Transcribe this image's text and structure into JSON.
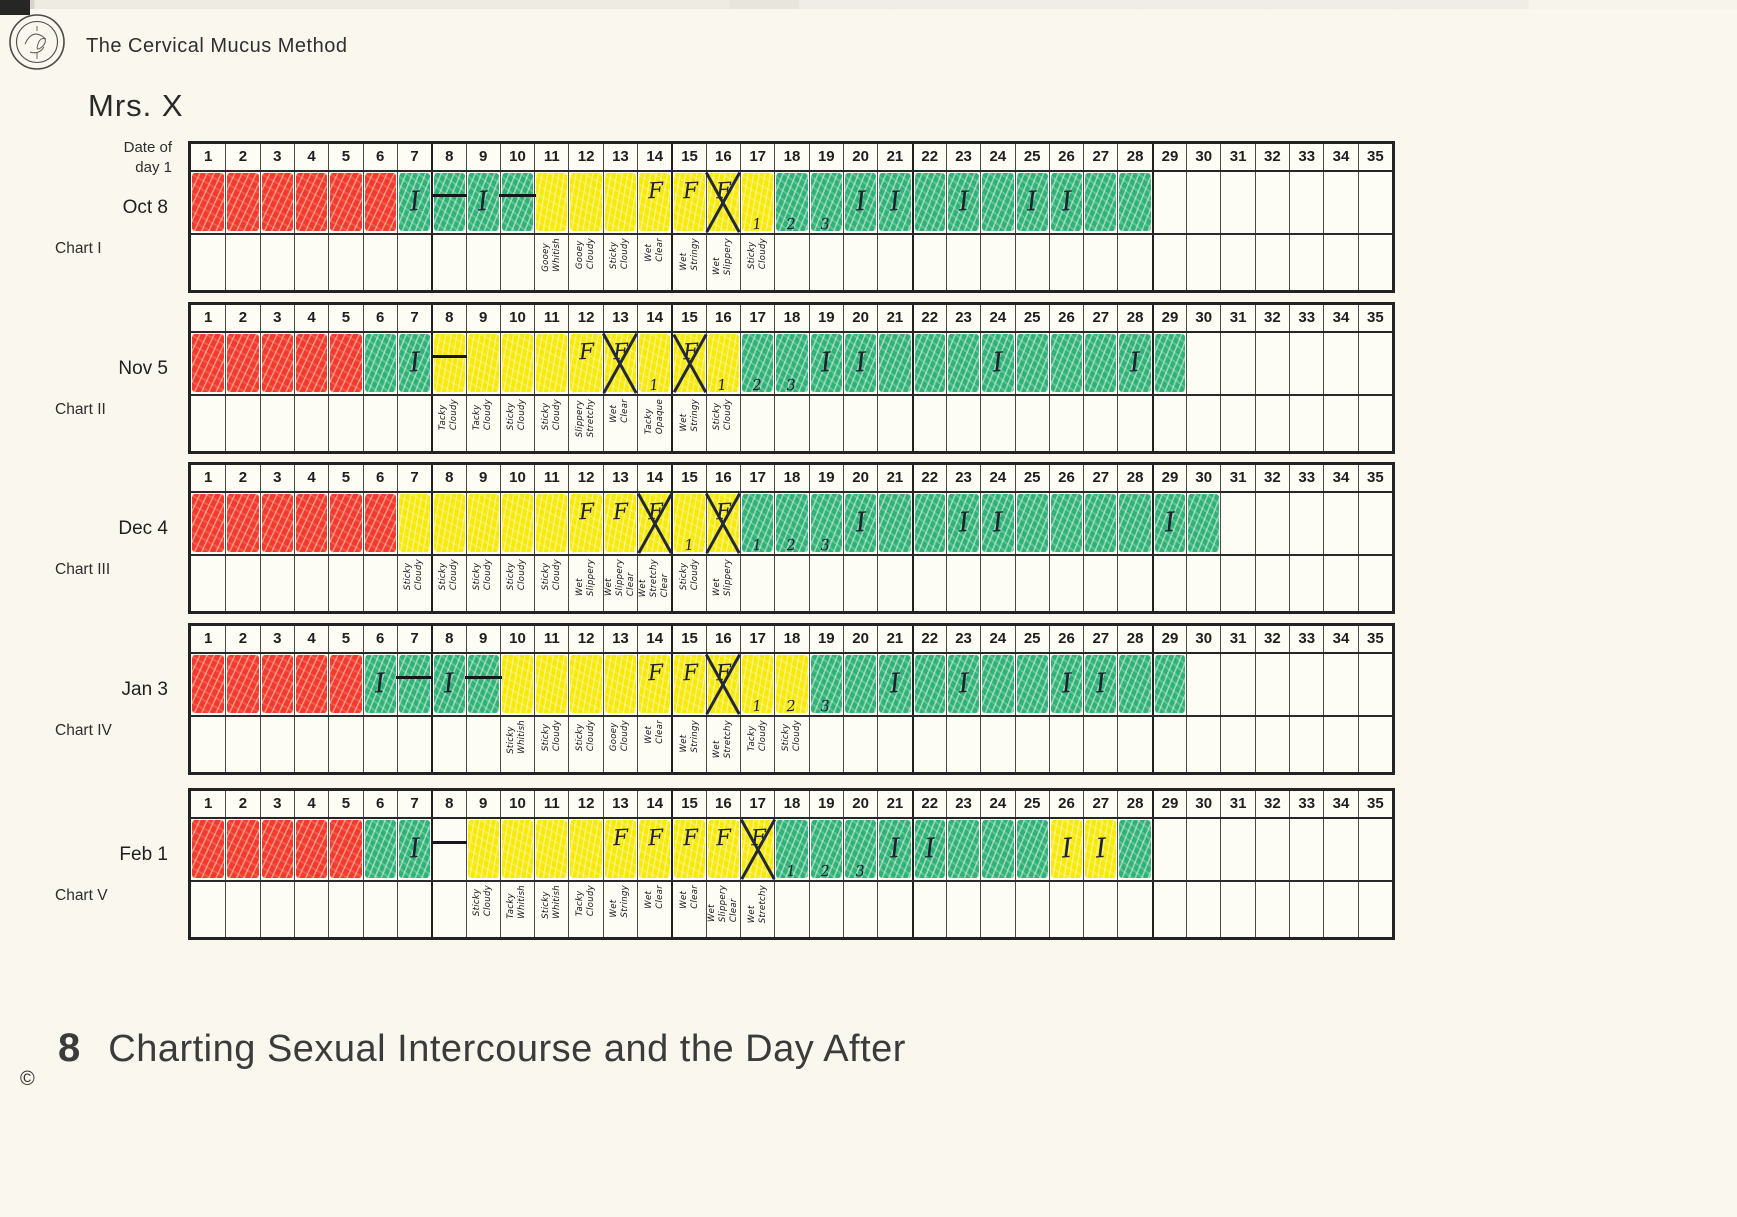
{
  "header": {
    "title": "The Cervical Mucus Method",
    "patient_name": "Mrs. X"
  },
  "axis": {
    "left_top_label": "Date of\nday 1",
    "day_numbers": [
      1,
      2,
      3,
      4,
      5,
      6,
      7,
      8,
      9,
      10,
      11,
      12,
      13,
      14,
      15,
      16,
      17,
      18,
      19,
      20,
      21,
      22,
      23,
      24,
      25,
      26,
      27,
      28,
      29,
      30,
      31,
      32,
      33,
      34,
      35
    ]
  },
  "colors": {
    "red": "#f23b2c",
    "green": "#2fb277",
    "yellow": "#f7ea08",
    "ink": "#1d2130",
    "paper": "#f9f7ee",
    "border": "#232323"
  },
  "charts": [
    {
      "name": "Chart I",
      "start_date": "Oct 8",
      "days": [
        {
          "n": 1,
          "c": "r"
        },
        {
          "n": 2,
          "c": "r"
        },
        {
          "n": 3,
          "c": "r"
        },
        {
          "n": 4,
          "c": "r"
        },
        {
          "n": 5,
          "c": "r"
        },
        {
          "n": 6,
          "c": "r"
        },
        {
          "n": 7,
          "c": "g",
          "m": "I"
        },
        {
          "n": 8,
          "c": "g",
          "m": "dash"
        },
        {
          "n": 9,
          "c": "g",
          "m": "I"
        },
        {
          "n": 10,
          "c": "g",
          "m": "dash"
        },
        {
          "n": 11,
          "c": "y",
          "t": "Gooey\nWhitish"
        },
        {
          "n": 12,
          "c": "y",
          "t": "Gooey\nCloudy"
        },
        {
          "n": 13,
          "c": "y",
          "t": "Sticky\nCloudy"
        },
        {
          "n": 14,
          "c": "y",
          "m": "F",
          "t": "Wet\nClear"
        },
        {
          "n": 15,
          "c": "y",
          "m": "F",
          "t": "Wet\nStringy"
        },
        {
          "n": 16,
          "c": "y",
          "m": "FX",
          "t": "Wet\nSlippery"
        },
        {
          "n": 17,
          "c": "y",
          "s": "1",
          "t": "Sticky\nCloudy"
        },
        {
          "n": 18,
          "c": "g",
          "s": "2"
        },
        {
          "n": 19,
          "c": "g",
          "s": "3"
        },
        {
          "n": 20,
          "c": "g",
          "m": "I"
        },
        {
          "n": 21,
          "c": "g",
          "m": "I"
        },
        {
          "n": 22,
          "c": "g"
        },
        {
          "n": 23,
          "c": "g",
          "m": "I"
        },
        {
          "n": 24,
          "c": "g"
        },
        {
          "n": 25,
          "c": "g",
          "m": "I"
        },
        {
          "n": 26,
          "c": "g",
          "m": "I"
        },
        {
          "n": 27,
          "c": "g"
        },
        {
          "n": 28,
          "c": "g"
        },
        {
          "n": 29
        },
        {
          "n": 30
        },
        {
          "n": 31
        },
        {
          "n": 32
        },
        {
          "n": 33
        },
        {
          "n": 34
        },
        {
          "n": 35
        }
      ]
    },
    {
      "name": "Chart II",
      "start_date": "Nov 5",
      "days": [
        {
          "n": 1,
          "c": "r"
        },
        {
          "n": 2,
          "c": "r"
        },
        {
          "n": 3,
          "c": "r"
        },
        {
          "n": 4,
          "c": "r"
        },
        {
          "n": 5,
          "c": "r"
        },
        {
          "n": 6,
          "c": "g"
        },
        {
          "n": 7,
          "c": "g",
          "m": "I"
        },
        {
          "n": 8,
          "c": "y",
          "m": "dash",
          "t": "Tacky\nCloudy"
        },
        {
          "n": 9,
          "c": "y",
          "t": "Tacky\nCloudy"
        },
        {
          "n": 10,
          "c": "y",
          "t": "Sticky\nCloudy"
        },
        {
          "n": 11,
          "c": "y",
          "t": "Sticky\nCloudy"
        },
        {
          "n": 12,
          "c": "y",
          "m": "F",
          "t": "Slippery\nStretchy"
        },
        {
          "n": 13,
          "c": "y",
          "m": "FX",
          "t": "Wet\nClear"
        },
        {
          "n": 14,
          "c": "y",
          "s": "1",
          "t": "Tacky\nOpaque"
        },
        {
          "n": 15,
          "c": "y",
          "m": "FX",
          "t": "Wet\nStringy"
        },
        {
          "n": 16,
          "c": "y",
          "s": "1",
          "t": "Sticky\nCloudy"
        },
        {
          "n": 17,
          "c": "g",
          "s": "2"
        },
        {
          "n": 18,
          "c": "g",
          "s": "3"
        },
        {
          "n": 19,
          "c": "g",
          "m": "I"
        },
        {
          "n": 20,
          "c": "g",
          "m": "I"
        },
        {
          "n": 21,
          "c": "g"
        },
        {
          "n": 22,
          "c": "g"
        },
        {
          "n": 23,
          "c": "g"
        },
        {
          "n": 24,
          "c": "g",
          "m": "I"
        },
        {
          "n": 25,
          "c": "g"
        },
        {
          "n": 26,
          "c": "g"
        },
        {
          "n": 27,
          "c": "g"
        },
        {
          "n": 28,
          "c": "g",
          "m": "I"
        },
        {
          "n": 29,
          "c": "g"
        },
        {
          "n": 30
        },
        {
          "n": 31
        },
        {
          "n": 32
        },
        {
          "n": 33
        },
        {
          "n": 34
        },
        {
          "n": 35
        }
      ]
    },
    {
      "name": "Chart III",
      "start_date": "Dec 4",
      "days": [
        {
          "n": 1,
          "c": "r"
        },
        {
          "n": 2,
          "c": "r"
        },
        {
          "n": 3,
          "c": "r"
        },
        {
          "n": 4,
          "c": "r"
        },
        {
          "n": 5,
          "c": "r"
        },
        {
          "n": 6,
          "c": "r"
        },
        {
          "n": 7,
          "c": "y",
          "t": "Sticky\nCloudy"
        },
        {
          "n": 8,
          "c": "y",
          "t": "Sticky\nCloudy"
        },
        {
          "n": 9,
          "c": "y",
          "t": "Sticky\nCloudy"
        },
        {
          "n": 10,
          "c": "y",
          "t": "Sticky\nCloudy"
        },
        {
          "n": 11,
          "c": "y",
          "t": "Sticky\nCloudy"
        },
        {
          "n": 12,
          "c": "y",
          "m": "F",
          "t": "Wet\nSlippery"
        },
        {
          "n": 13,
          "c": "y",
          "m": "F",
          "t": "Wet\nSlippery\nClear"
        },
        {
          "n": 14,
          "c": "y",
          "m": "FX",
          "t": "Wet\nStretchy\nClear"
        },
        {
          "n": 15,
          "c": "y",
          "s": "1",
          "t": "Sticky\nCloudy"
        },
        {
          "n": 16,
          "c": "y",
          "m": "FX",
          "t": "Wet\nSlippery"
        },
        {
          "n": 17,
          "c": "g",
          "s": "1"
        },
        {
          "n": 18,
          "c": "g",
          "s": "2"
        },
        {
          "n": 19,
          "c": "g",
          "s": "3"
        },
        {
          "n": 20,
          "c": "g",
          "m": "I"
        },
        {
          "n": 21,
          "c": "g"
        },
        {
          "n": 22,
          "c": "g"
        },
        {
          "n": 23,
          "c": "g",
          "m": "I"
        },
        {
          "n": 24,
          "c": "g",
          "m": "I"
        },
        {
          "n": 25,
          "c": "g"
        },
        {
          "n": 26,
          "c": "g"
        },
        {
          "n": 27,
          "c": "g"
        },
        {
          "n": 28,
          "c": "g"
        },
        {
          "n": 29,
          "c": "g",
          "m": "I"
        },
        {
          "n": 30,
          "c": "g"
        },
        {
          "n": 31
        },
        {
          "n": 32
        },
        {
          "n": 33
        },
        {
          "n": 34
        },
        {
          "n": 35
        }
      ]
    },
    {
      "name": "Chart IV",
      "start_date": "Jan 3",
      "days": [
        {
          "n": 1,
          "c": "r"
        },
        {
          "n": 2,
          "c": "r"
        },
        {
          "n": 3,
          "c": "r"
        },
        {
          "n": 4,
          "c": "r"
        },
        {
          "n": 5,
          "c": "r"
        },
        {
          "n": 6,
          "c": "g",
          "m": "I"
        },
        {
          "n": 7,
          "c": "g",
          "m": "dash"
        },
        {
          "n": 8,
          "c": "g",
          "m": "I"
        },
        {
          "n": 9,
          "c": "g",
          "m": "dash"
        },
        {
          "n": 10,
          "c": "y",
          "t": "Sticky\nWhitish"
        },
        {
          "n": 11,
          "c": "y",
          "t": "Sticky\nCloudy"
        },
        {
          "n": 12,
          "c": "y",
          "t": "Sticky\nCloudy"
        },
        {
          "n": 13,
          "c": "y",
          "t": "Gooey\nCloudy"
        },
        {
          "n": 14,
          "c": "y",
          "m": "F",
          "t": "Wet\nClear"
        },
        {
          "n": 15,
          "c": "y",
          "m": "F",
          "t": "Wet\nStringy"
        },
        {
          "n": 16,
          "c": "y",
          "m": "FX",
          "t": "Wet\nStretchy"
        },
        {
          "n": 17,
          "c": "y",
          "s": "1",
          "t": "Tacky\nCloudy"
        },
        {
          "n": 18,
          "c": "y",
          "s": "2",
          "t": "Sticky\nCloudy"
        },
        {
          "n": 19,
          "c": "g",
          "s": "3"
        },
        {
          "n": 20,
          "c": "g"
        },
        {
          "n": 21,
          "c": "g",
          "m": "I"
        },
        {
          "n": 22,
          "c": "g"
        },
        {
          "n": 23,
          "c": "g",
          "m": "I"
        },
        {
          "n": 24,
          "c": "g"
        },
        {
          "n": 25,
          "c": "g"
        },
        {
          "n": 26,
          "c": "g",
          "m": "I"
        },
        {
          "n": 27,
          "c": "g",
          "m": "I"
        },
        {
          "n": 28,
          "c": "g"
        },
        {
          "n": 29,
          "c": "g"
        },
        {
          "n": 30
        },
        {
          "n": 31
        },
        {
          "n": 32
        },
        {
          "n": 33
        },
        {
          "n": 34
        },
        {
          "n": 35
        }
      ]
    },
    {
      "name": "Chart V",
      "start_date": "Feb 1",
      "days": [
        {
          "n": 1,
          "c": "r"
        },
        {
          "n": 2,
          "c": "r"
        },
        {
          "n": 3,
          "c": "r"
        },
        {
          "n": 4,
          "c": "r"
        },
        {
          "n": 5,
          "c": "r"
        },
        {
          "n": 6,
          "c": "g"
        },
        {
          "n": 7,
          "c": "g",
          "m": "I"
        },
        {
          "n": 8,
          "c": "w",
          "m": "dash"
        },
        {
          "n": 9,
          "c": "y",
          "t": "Sticky\nCloudy"
        },
        {
          "n": 10,
          "c": "y",
          "t": "Tacky\nWhitish"
        },
        {
          "n": 11,
          "c": "y",
          "t": "Sticky\nWhitish"
        },
        {
          "n": 12,
          "c": "y",
          "t": "Tacky\nCloudy"
        },
        {
          "n": 13,
          "c": "y",
          "m": "F",
          "t": "Wet\nStringy"
        },
        {
          "n": 14,
          "c": "y",
          "m": "F",
          "t": "Wet\nClear"
        },
        {
          "n": 15,
          "c": "y",
          "m": "F",
          "t": "Wet\nClear"
        },
        {
          "n": 16,
          "c": "y",
          "m": "F",
          "t": "Wet\nSlippery\nClear"
        },
        {
          "n": 17,
          "c": "y",
          "m": "FX",
          "t": "Wet\nStretchy"
        },
        {
          "n": 18,
          "c": "g",
          "s": "1"
        },
        {
          "n": 19,
          "c": "g",
          "s": "2"
        },
        {
          "n": 20,
          "c": "g",
          "s": "3"
        },
        {
          "n": 21,
          "c": "g",
          "m": "I"
        },
        {
          "n": 22,
          "c": "g",
          "m": "I"
        },
        {
          "n": 23,
          "c": "g"
        },
        {
          "n": 24,
          "c": "g"
        },
        {
          "n": 25,
          "c": "g"
        },
        {
          "n": 26,
          "c": "y",
          "m": "I"
        },
        {
          "n": 27,
          "c": "y",
          "m": "I"
        },
        {
          "n": 28,
          "c": "g"
        },
        {
          "n": 29
        },
        {
          "n": 30
        },
        {
          "n": 31
        },
        {
          "n": 32
        },
        {
          "n": 33
        },
        {
          "n": 34
        },
        {
          "n": 35
        }
      ]
    }
  ],
  "footer": {
    "section_number": "8",
    "title": "Charting Sexual Intercourse and the Day After",
    "copyright_symbol": "©"
  }
}
